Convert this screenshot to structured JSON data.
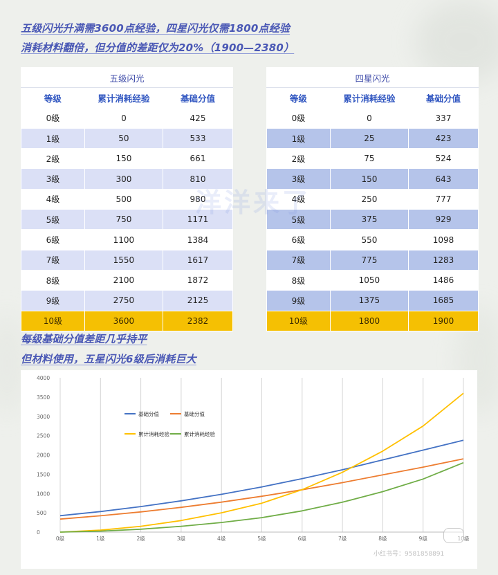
{
  "headings": {
    "line1": "五级闪光升满需3600点经验，四星闪光仅需1800点经验",
    "line2": "消耗材料翻倍，但分值的差距仅为20%（1900—2380）",
    "line3": "每级基础分值差距几乎持平",
    "line4": "但材料使用，五星闪光6级后消耗巨大"
  },
  "watermark": "洋洋来了",
  "corner_watermark": "小红书号：9581858891",
  "colors": {
    "heading": "#4a58b5",
    "gold_row": "#f5c003",
    "series_base5": "#4472c4",
    "series_base4": "#ed7d31",
    "series_exp5": "#ffc000",
    "series_exp4": "#70ad47"
  },
  "tables": {
    "five": {
      "title": "五级闪光",
      "headers": [
        "等级",
        "累计消耗经验",
        "基础分值"
      ],
      "rows": [
        [
          "0级",
          "0",
          "425"
        ],
        [
          "1级",
          "50",
          "533"
        ],
        [
          "2级",
          "150",
          "661"
        ],
        [
          "3级",
          "300",
          "810"
        ],
        [
          "4级",
          "500",
          "980"
        ],
        [
          "5级",
          "750",
          "1171"
        ],
        [
          "6级",
          "1100",
          "1384"
        ],
        [
          "7级",
          "1550",
          "1617"
        ],
        [
          "8级",
          "2100",
          "1872"
        ],
        [
          "9级",
          "2750",
          "2125"
        ],
        [
          "10级",
          "3600",
          "2382"
        ]
      ]
    },
    "four": {
      "title": "四星闪光",
      "headers": [
        "等级",
        "累计消耗经验",
        "基础分值"
      ],
      "rows": [
        [
          "0级",
          "0",
          "337"
        ],
        [
          "1级",
          "25",
          "423"
        ],
        [
          "2级",
          "75",
          "524"
        ],
        [
          "3级",
          "150",
          "643"
        ],
        [
          "4级",
          "250",
          "777"
        ],
        [
          "5级",
          "375",
          "929"
        ],
        [
          "6级",
          "550",
          "1098"
        ],
        [
          "7级",
          "775",
          "1283"
        ],
        [
          "8级",
          "1050",
          "1486"
        ],
        [
          "9级",
          "1375",
          "1685"
        ],
        [
          "10级",
          "1800",
          "1900"
        ]
      ]
    }
  },
  "chart_data": {
    "type": "line",
    "categories": [
      "0级",
      "1级",
      "2级",
      "3级",
      "4级",
      "5级",
      "6级",
      "7级",
      "8级",
      "9级",
      "10级"
    ],
    "ylim": [
      0,
      4000
    ],
    "yticks": [
      0,
      500,
      1000,
      1500,
      2000,
      2500,
      3000,
      3500,
      4000
    ],
    "grid": "vertical",
    "legend_position": "top-left",
    "series": [
      {
        "name": "基础分值",
        "color": "#4472c4",
        "values": [
          425,
          533,
          661,
          810,
          980,
          1171,
          1384,
          1617,
          1872,
          2125,
          2382
        ]
      },
      {
        "name": "基础分值",
        "color": "#ed7d31",
        "values": [
          337,
          423,
          524,
          643,
          777,
          929,
          1098,
          1283,
          1486,
          1685,
          1900
        ]
      },
      {
        "name": "累计消耗经验",
        "color": "#ffc000",
        "values": [
          0,
          50,
          150,
          300,
          500,
          750,
          1100,
          1550,
          2100,
          2750,
          3600
        ]
      },
      {
        "name": "累计消耗经验",
        "color": "#70ad47",
        "values": [
          0,
          25,
          75,
          150,
          250,
          375,
          550,
          775,
          1050,
          1375,
          1800
        ]
      }
    ]
  }
}
